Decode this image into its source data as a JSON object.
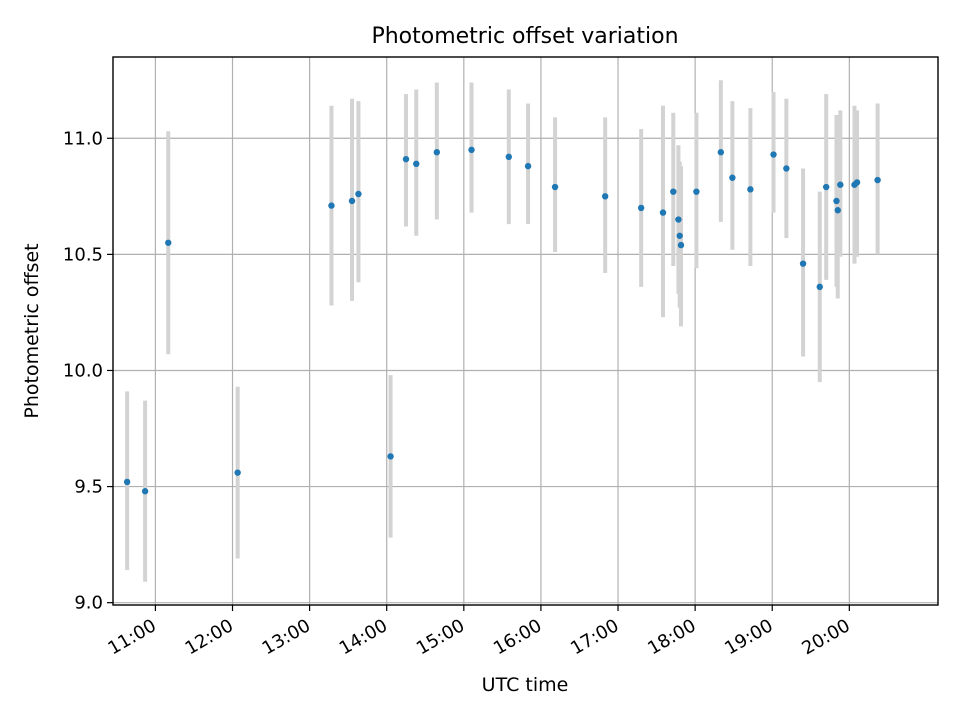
{
  "chart_data": {
    "type": "scatter",
    "title": "Photometric offset variation",
    "xlabel": "UTC time",
    "ylabel": "Photometric offset",
    "x_unit": "hours (UTC)",
    "xlim": [
      "10:27",
      "21:09"
    ],
    "ylim": [
      8.99,
      11.35
    ],
    "x_ticks": [
      "11:00",
      "12:00",
      "13:00",
      "14:00",
      "15:00",
      "16:00",
      "17:00",
      "18:00",
      "19:00",
      "20:00"
    ],
    "y_ticks": [
      "9.0",
      "9.5",
      "10.0",
      "10.5",
      "11.0"
    ],
    "grid": true,
    "colors": {
      "point": "#1f77b4",
      "errorbar": "#d3d3d3"
    },
    "points": [
      {
        "x": "10:38",
        "y": 9.52,
        "lo": 9.14,
        "hi": 9.91
      },
      {
        "x": "10:52",
        "y": 9.48,
        "lo": 9.09,
        "hi": 9.87
      },
      {
        "x": "11:10",
        "y": 10.55,
        "lo": 10.07,
        "hi": 11.03
      },
      {
        "x": "12:04",
        "y": 9.56,
        "lo": 9.19,
        "hi": 9.93
      },
      {
        "x": "13:17",
        "y": 10.71,
        "lo": 10.28,
        "hi": 11.14
      },
      {
        "x": "13:33",
        "y": 10.73,
        "lo": 10.3,
        "hi": 11.17
      },
      {
        "x": "13:38",
        "y": 10.76,
        "lo": 10.38,
        "hi": 11.16
      },
      {
        "x": "14:03",
        "y": 9.63,
        "lo": 9.28,
        "hi": 9.98
      },
      {
        "x": "14:15",
        "y": 10.91,
        "lo": 10.62,
        "hi": 11.19
      },
      {
        "x": "14:23",
        "y": 10.89,
        "lo": 10.58,
        "hi": 11.21
      },
      {
        "x": "14:39",
        "y": 10.94,
        "lo": 10.65,
        "hi": 11.24
      },
      {
        "x": "15:06",
        "y": 10.95,
        "lo": 10.68,
        "hi": 11.24
      },
      {
        "x": "15:35",
        "y": 10.92,
        "lo": 10.63,
        "hi": 11.21
      },
      {
        "x": "15:50",
        "y": 10.88,
        "lo": 10.63,
        "hi": 11.15
      },
      {
        "x": "16:11",
        "y": 10.79,
        "lo": 10.51,
        "hi": 11.09
      },
      {
        "x": "16:50",
        "y": 10.75,
        "lo": 10.42,
        "hi": 11.09
      },
      {
        "x": "17:18",
        "y": 10.7,
        "lo": 10.36,
        "hi": 11.04
      },
      {
        "x": "17:35",
        "y": 10.68,
        "lo": 10.23,
        "hi": 11.14
      },
      {
        "x": "17:43",
        "y": 10.77,
        "lo": 10.45,
        "hi": 11.11
      },
      {
        "x": "17:47",
        "y": 10.65,
        "lo": 10.33,
        "hi": 10.97
      },
      {
        "x": "17:48",
        "y": 10.58,
        "lo": 10.27,
        "hi": 10.9
      },
      {
        "x": "17:49",
        "y": 10.54,
        "lo": 10.19,
        "hi": 10.88
      },
      {
        "x": "18:01",
        "y": 10.77,
        "lo": 10.44,
        "hi": 11.11
      },
      {
        "x": "18:20",
        "y": 10.94,
        "lo": 10.64,
        "hi": 11.25
      },
      {
        "x": "18:29",
        "y": 10.83,
        "lo": 10.52,
        "hi": 11.16
      },
      {
        "x": "18:43",
        "y": 10.78,
        "lo": 10.45,
        "hi": 11.13
      },
      {
        "x": "19:01",
        "y": 10.93,
        "lo": 10.68,
        "hi": 11.2
      },
      {
        "x": "19:11",
        "y": 10.87,
        "lo": 10.57,
        "hi": 11.17
      },
      {
        "x": "19:24",
        "y": 10.46,
        "lo": 10.06,
        "hi": 10.87
      },
      {
        "x": "19:37",
        "y": 10.36,
        "lo": 9.95,
        "hi": 10.77
      },
      {
        "x": "19:42",
        "y": 10.79,
        "lo": 10.39,
        "hi": 11.19
      },
      {
        "x": "19:50",
        "y": 10.73,
        "lo": 10.36,
        "hi": 11.1
      },
      {
        "x": "19:51",
        "y": 10.69,
        "lo": 10.31,
        "hi": 11.07
      },
      {
        "x": "19:53",
        "y": 10.8,
        "lo": 10.49,
        "hi": 11.12
      },
      {
        "x": "20:04",
        "y": 10.8,
        "lo": 10.46,
        "hi": 11.14
      },
      {
        "x": "20:06",
        "y": 10.81,
        "lo": 10.49,
        "hi": 11.12
      },
      {
        "x": "20:22",
        "y": 10.82,
        "lo": 10.5,
        "hi": 11.15
      }
    ]
  }
}
